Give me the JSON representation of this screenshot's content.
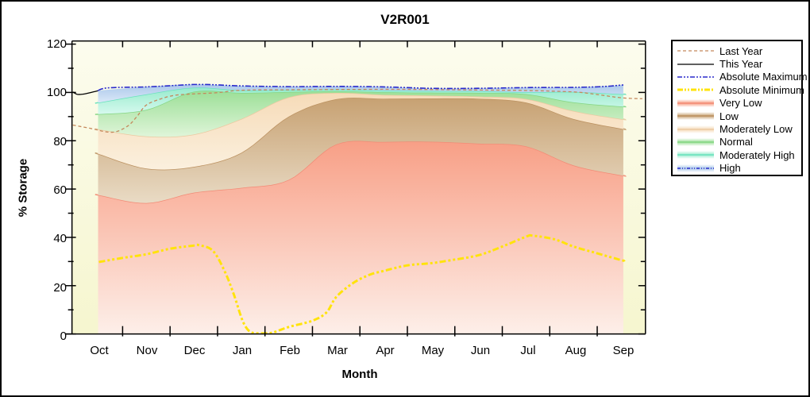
{
  "window": {
    "background": "#FFFFFF",
    "border_color": "#000000"
  },
  "chart_data": {
    "type": "area",
    "title": "V2R001",
    "xlabel": "Month",
    "ylabel": "% Storage",
    "months": [
      "Oct",
      "Nov",
      "Dec",
      "Jan",
      "Feb",
      "Mar",
      "Apr",
      "May",
      "Jun",
      "Jul",
      "Aug",
      "Sep"
    ],
    "y_ticks": [
      0,
      20,
      40,
      60,
      80,
      100,
      120
    ],
    "ylim": [
      0,
      121
    ],
    "grid": false,
    "legend_position": "outside-right",
    "plot_bg_top": "#FCFCEE",
    "plot_bg_bottom": "#F6F6CF",
    "bands": [
      {
        "name": "Very Low",
        "line": "#F28B76",
        "fill_top": "#F89F86",
        "fill_bottom": "#FDEFE9",
        "top": [
          57.5,
          54.2,
          58.5,
          60.5,
          63.8,
          78.5,
          79.5,
          79.6,
          78.8,
          77.7,
          69.8,
          65.7
        ]
      },
      {
        "name": "Low",
        "line": "#BB9160",
        "fill_top": "#C7A172",
        "fill_bottom": "#E9DBC5",
        "top": [
          74.5,
          68.5,
          69.2,
          75.0,
          90.0,
          97.2,
          97.4,
          97.5,
          97.4,
          95.8,
          89.0,
          85.0
        ]
      },
      {
        "name": "Moderately Low",
        "line": "#EBC9A1",
        "fill_top": "#F6DBB8",
        "fill_bottom": "#FBF0DE",
        "top": [
          84.7,
          81.8,
          82.6,
          89.0,
          98.0,
          99.8,
          99.0,
          98.7,
          98.3,
          97.3,
          92.3,
          89.0
        ]
      },
      {
        "name": "Normal",
        "line": "#84D684",
        "fill_top": "#9CDF97",
        "fill_bottom": "#DFF5D9",
        "top": [
          91.0,
          92.8,
          100.3,
          99.8,
          100.2,
          100.5,
          100.1,
          99.9,
          99.8,
          99.3,
          95.9,
          94.2
        ]
      },
      {
        "name": "Moderately High",
        "line": "#68E2BD",
        "fill_top": "#97EBCD",
        "fill_bottom": "#D7F9EE",
        "top": [
          95.8,
          99.2,
          102.0,
          100.9,
          101.0,
          101.2,
          100.8,
          100.6,
          100.5,
          100.1,
          100.2,
          99.3
        ]
      },
      {
        "name": "High",
        "line": null,
        "fill_top": "#ABC8EA",
        "fill_bottom": "#DCE9F8",
        "top": [
          100.8,
          102.3,
          103.3,
          102.7,
          102.4,
          102.5,
          102.3,
          101.7,
          101.7,
          102.0,
          102.1,
          103.0
        ]
      }
    ],
    "lines": [
      {
        "name": "Last Year",
        "color": "#C4885C",
        "width": 1.3,
        "dash": "4 3",
        "points": [
          [
            -0.55,
            86.5
          ],
          [
            -0.2,
            85.2
          ],
          [
            0.28,
            83.5
          ],
          [
            0.6,
            86
          ],
          [
            0.8,
            90
          ],
          [
            1,
            94.8
          ],
          [
            1.3,
            97.3
          ],
          [
            1.6,
            98.8
          ],
          [
            2,
            99.4
          ],
          [
            2.5,
            99.9
          ],
          [
            3,
            100.9
          ],
          [
            4,
            101.1
          ],
          [
            5,
            101.2
          ],
          [
            6,
            101.3
          ],
          [
            7,
            101.2
          ],
          [
            8,
            101.0
          ],
          [
            9,
            100.8
          ],
          [
            10,
            100.2
          ],
          [
            10.4,
            99.4
          ],
          [
            11,
            97.8
          ],
          [
            11.45,
            97.4
          ]
        ]
      },
      {
        "name": "This Year",
        "color": "#000000",
        "width": 1.3,
        "dash": "",
        "points": [
          [
            -0.55,
            100.2
          ],
          [
            -0.45,
            99.2
          ],
          [
            -0.3,
            99.4
          ],
          [
            -0.1,
            100.3
          ],
          [
            -0.02,
            100.7
          ]
        ]
      },
      {
        "name": "Absolute Maximum",
        "color": "#2A2ACC",
        "width": 1.6,
        "dash": "7 2 2 2 2 2",
        "points": [
          [
            -0.02,
            100.8
          ],
          [
            0.2,
            101.9
          ],
          [
            1,
            102.3
          ],
          [
            1.7,
            103.0
          ],
          [
            2,
            103.3
          ],
          [
            2.4,
            103.2
          ],
          [
            3,
            102.7
          ],
          [
            4,
            102.4
          ],
          [
            5,
            102.5
          ],
          [
            6,
            102.3
          ],
          [
            7,
            101.7
          ],
          [
            8,
            101.7
          ],
          [
            9,
            102.0
          ],
          [
            10,
            102.1
          ],
          [
            10.6,
            102.4
          ],
          [
            11.05,
            103.1
          ]
        ]
      },
      {
        "name": "Absolute Minimum",
        "color": "#FFE30A",
        "width": 3,
        "dash": "8 3 3 3 3 3",
        "points": [
          [
            0,
            29.8
          ],
          [
            0.5,
            31.5
          ],
          [
            1,
            33
          ],
          [
            1.5,
            35.3
          ],
          [
            2,
            36.6
          ],
          [
            2.1,
            36.8
          ],
          [
            2.4,
            34.5
          ],
          [
            2.65,
            26
          ],
          [
            2.85,
            16
          ],
          [
            3.05,
            4.5
          ],
          [
            3.25,
            0.4
          ],
          [
            3.6,
            0.3
          ],
          [
            4,
            2.9
          ],
          [
            4.5,
            5.5
          ],
          [
            4.8,
            9
          ],
          [
            5,
            15.3
          ],
          [
            5.35,
            21
          ],
          [
            5.7,
            24.5
          ],
          [
            6,
            26.1
          ],
          [
            6.5,
            28.4
          ],
          [
            7,
            29.3
          ],
          [
            7.4,
            30.5
          ],
          [
            8,
            32.6
          ],
          [
            8.5,
            36.2
          ],
          [
            9,
            40.3
          ],
          [
            9.15,
            40.7
          ],
          [
            9.6,
            39.2
          ],
          [
            10,
            36.2
          ],
          [
            10.5,
            33.4
          ],
          [
            11,
            30.6
          ],
          [
            11.05,
            30.5
          ]
        ]
      }
    ]
  },
  "legend": [
    {
      "label": "Last Year",
      "kind": "line",
      "color": "#C4885C",
      "dash": "4 3",
      "width": 1.3
    },
    {
      "label": "This Year",
      "kind": "line",
      "color": "#000000",
      "dash": "",
      "width": 1.3
    },
    {
      "label": "Absolute Maximum",
      "kind": "line",
      "color": "#2A2ACC",
      "dash": "6 2 2 2 2 2",
      "width": 1.5
    },
    {
      "label": "Absolute Minimum",
      "kind": "line",
      "color": "#FFE30A",
      "dash": "7 2 2 2 2 2",
      "width": 3
    },
    {
      "label": "Very Low",
      "kind": "band",
      "fill": "#F89F86",
      "line": "#F28B76",
      "dash": ""
    },
    {
      "label": "Low",
      "kind": "band",
      "fill": "#C7A172",
      "line": "#BB9160",
      "dash": ""
    },
    {
      "label": "Moderately Low",
      "kind": "band",
      "fill": "#F6DBB8",
      "line": "#EBC9A1",
      "dash": ""
    },
    {
      "label": "Normal",
      "kind": "band",
      "fill": "#9CDF97",
      "line": "#84D684",
      "dash": ""
    },
    {
      "label": "Moderately High",
      "kind": "band",
      "fill": "#97EBCD",
      "line": "#68E2BD",
      "dash": ""
    },
    {
      "label": "High",
      "kind": "band",
      "fill": "#ABC8EA",
      "line": "#2A2ACC",
      "dash": "4 2 1 2 1 2"
    }
  ]
}
